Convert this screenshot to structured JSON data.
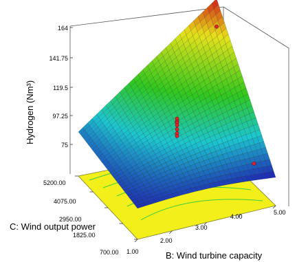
{
  "chart_data": {
    "type": "surface",
    "zlabel": "Hydrogen (Nm³)",
    "xlabel": "B: Wind turbine capacity",
    "ylabel": "C: Wind output power",
    "z_ticks": [
      "164",
      "141.75",
      "119.5",
      "97.25",
      "75"
    ],
    "x_ticks": [
      "1.00",
      "2.00",
      "3.00",
      "4.00",
      "5.00"
    ],
    "y_ticks": [
      "700.00",
      "1825.00",
      "2950.00",
      "4075.00",
      "5200.00"
    ],
    "zlim": [
      75,
      164
    ],
    "xlim": [
      1,
      5
    ],
    "ylim": [
      700,
      5200
    ],
    "surface_corners": [
      {
        "x": 1,
        "y": 700,
        "z": 75
      },
      {
        "x": 5,
        "y": 700,
        "z": 73
      },
      {
        "x": 1,
        "y": 5200,
        "z": 85
      },
      {
        "x": 5,
        "y": 5200,
        "z": 164
      }
    ],
    "design_points": [
      {
        "x": 5.0,
        "y": 5200,
        "z": 143
      },
      {
        "x": 3.0,
        "y": 2950,
        "z": 107
      },
      {
        "x": 3.0,
        "y": 2950,
        "z": 105
      },
      {
        "x": 3.0,
        "y": 2950,
        "z": 104
      },
      {
        "x": 3.0,
        "y": 2950,
        "z": 102
      },
      {
        "x": 3.0,
        "y": 2950,
        "z": 99
      },
      {
        "x": 3.0,
        "y": 2950,
        "z": 96
      },
      {
        "x": 3.0,
        "y": 2950,
        "z": 94
      },
      {
        "x": 4.6,
        "y": 1300,
        "z": 80
      }
    ],
    "colors": {
      "blue": "#1e2fb4",
      "cyan": "#1cc6d0",
      "green": "#2fc81e",
      "yellow": "#e8e21a",
      "red": "#d0181a",
      "floor": "#f2ef1a",
      "contour": "#3ecb3e",
      "point": "#e0242a"
    }
  }
}
